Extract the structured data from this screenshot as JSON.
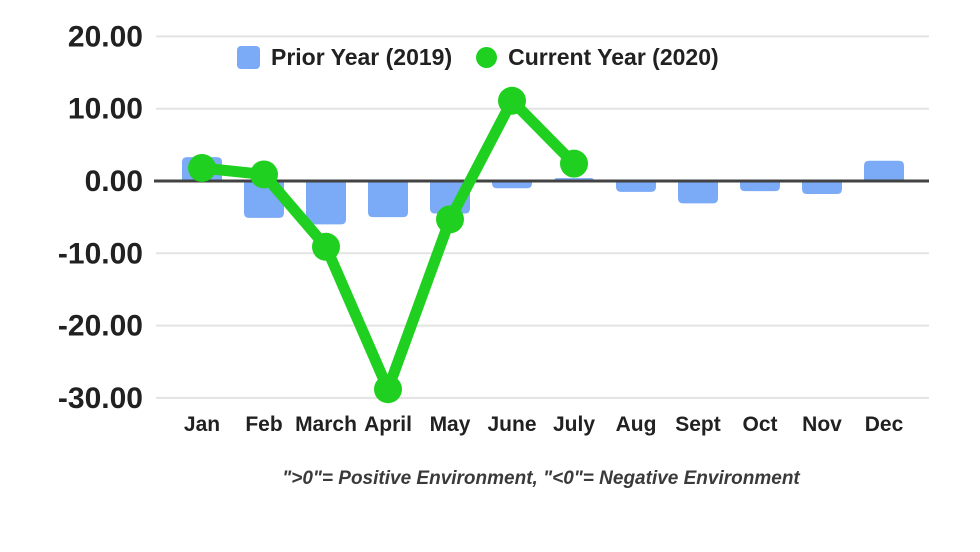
{
  "colors": {
    "background": "#FFFFFF",
    "bar": "#7BAAF7",
    "line": "#20D020",
    "axis_line": "#424242",
    "grid_line": "#E3E3E3",
    "tick_text": "#212121",
    "caption_text": "#3A3A3A"
  },
  "chart_data": {
    "type": "bar",
    "title": "",
    "caption": "\">0\"= Positive Environment, \"<0\"= Negative Environment",
    "categories": [
      "Jan",
      "Feb",
      "March",
      "April",
      "May",
      "June",
      "July",
      "Aug",
      "Sept",
      "Oct",
      "Nov",
      "Dec"
    ],
    "series": [
      {
        "name": "Prior Year (2019)",
        "type": "bar",
        "color": "#7BAAF7",
        "values": [
          3.3,
          -5.1,
          -6.0,
          -5.0,
          -4.5,
          -1.0,
          0.4,
          -1.5,
          -3.1,
          -1.4,
          -1.8,
          2.8
        ]
      },
      {
        "name": "Current Year (2020)",
        "type": "line",
        "color": "#20D020",
        "values": [
          1.8,
          0.9,
          -9.1,
          -28.8,
          -5.3,
          11.1,
          2.4,
          null,
          null,
          null,
          null,
          null
        ]
      }
    ],
    "yticks": {
      "values": [
        20,
        10,
        0,
        -10,
        -20,
        -30
      ],
      "labels": [
        "20.00",
        "10.00",
        "0.00",
        "-10.00",
        "-20.00",
        "-30.00"
      ]
    },
    "ylim": [
      -30,
      20
    ],
    "xlabel": "",
    "ylabel": "",
    "grid": true,
    "legend_position": "top"
  }
}
